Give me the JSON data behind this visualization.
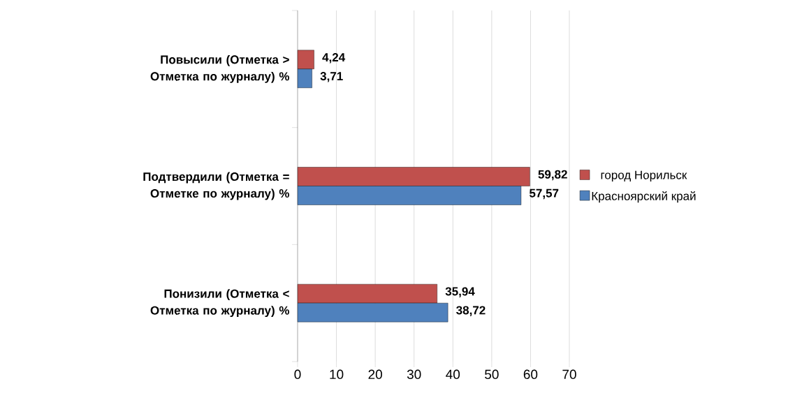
{
  "chart_data": {
    "type": "bar",
    "orientation": "horizontal",
    "categories": [
      "Повысили (Отметка > Отметка по журналу) %",
      "Подтвердили (Отметка = Отметке по журналу) %",
      "Понизили (Отметка < Отметка по журналу) %"
    ],
    "series": [
      {
        "name": "город Норильск",
        "color": "#c0504d",
        "values": [
          4.24,
          59.82,
          35.94
        ],
        "value_labels": [
          "4,24",
          "59,82",
          "35,94"
        ]
      },
      {
        "name": "Красноярский край",
        "color": "#4f81bd",
        "values": [
          3.71,
          57.57,
          38.72
        ],
        "value_labels": [
          "3,71",
          "57,57",
          "38,72"
        ]
      }
    ],
    "xlim": [
      0,
      70
    ],
    "xticks": [
      0,
      10,
      20,
      30,
      40,
      50,
      60,
      70
    ],
    "grid": "x",
    "legend": "right"
  }
}
